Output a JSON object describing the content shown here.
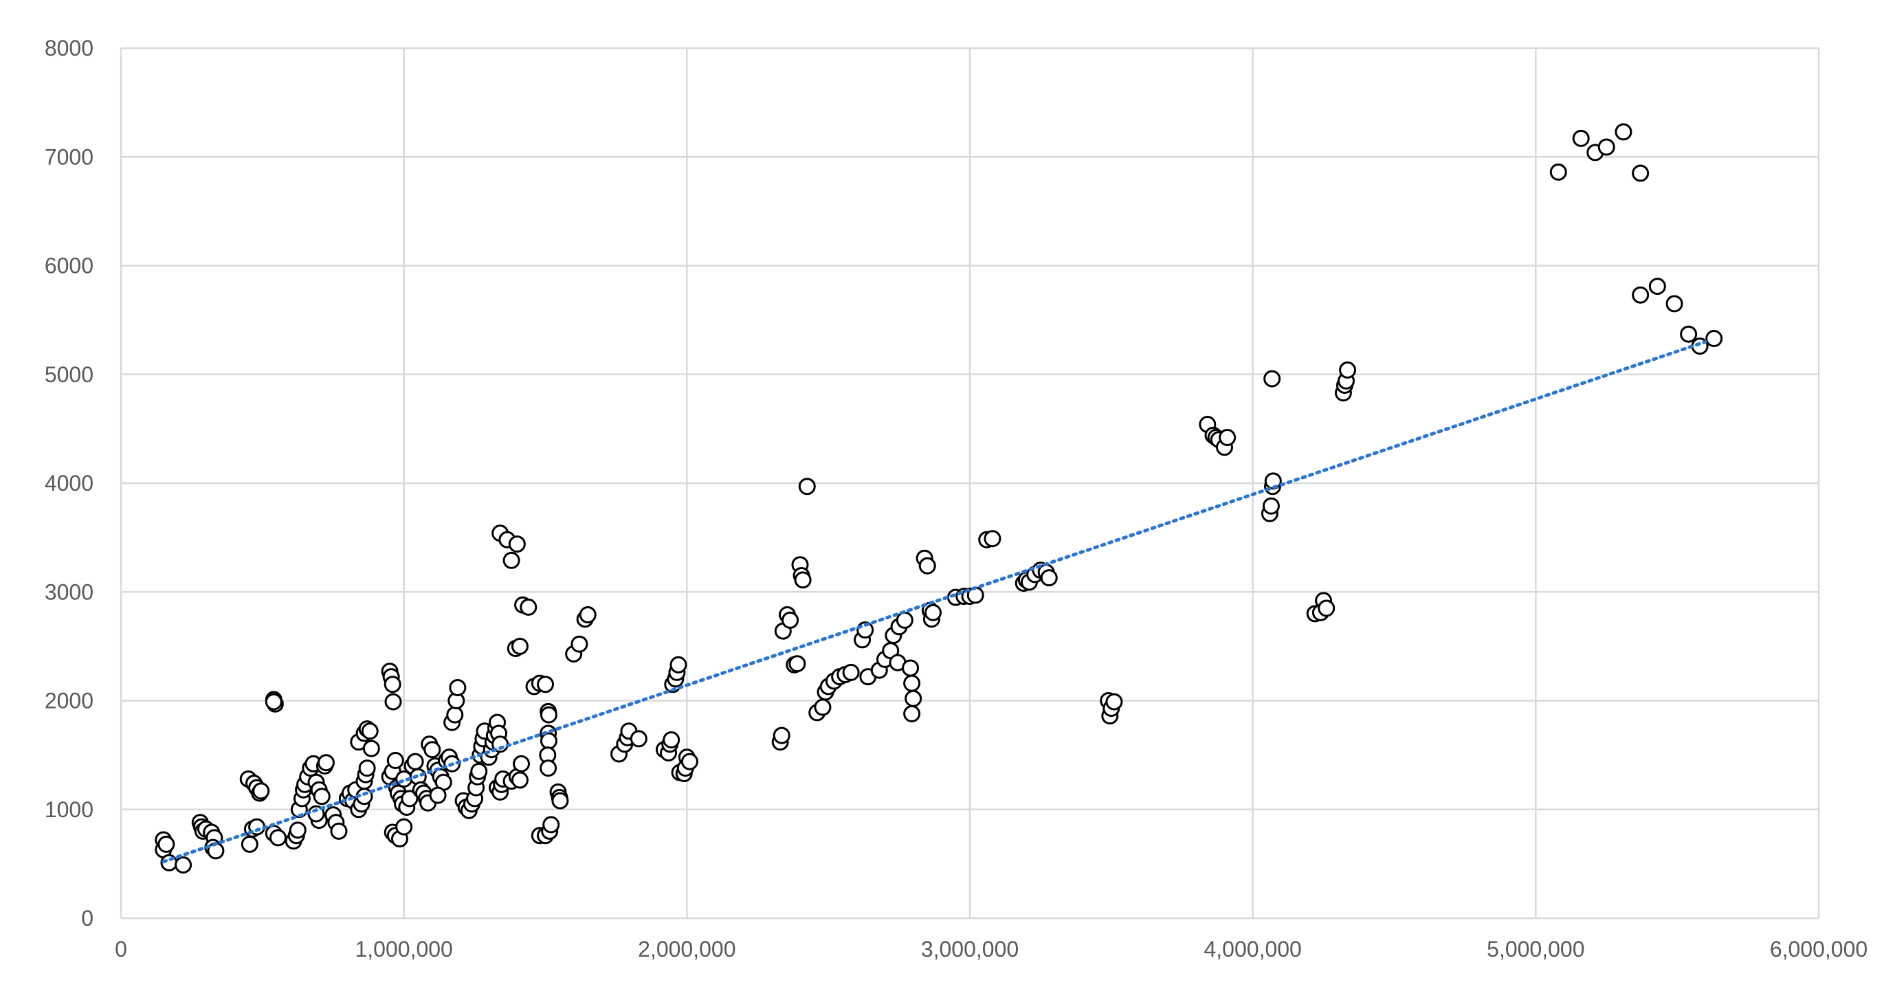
{
  "chart_data": {
    "type": "scatter",
    "title": "",
    "xlabel": "",
    "ylabel": "",
    "xlim": [
      0,
      6000000
    ],
    "ylim": [
      0,
      8000
    ],
    "x_ticks": [
      0,
      1000000,
      2000000,
      3000000,
      4000000,
      5000000,
      6000000
    ],
    "x_tick_labels": [
      "0",
      "1,000,000",
      "2,000,000",
      "3,000,000",
      "4,000,000",
      "5,000,000",
      "6,000,000"
    ],
    "y_ticks": [
      0,
      1000,
      2000,
      3000,
      4000,
      5000,
      6000,
      7000,
      8000
    ],
    "y_tick_labels": [
      "0",
      "1000",
      "2000",
      "3000",
      "4000",
      "5000",
      "6000",
      "7000",
      "8000"
    ],
    "grid": true,
    "legend": "none",
    "colors": {
      "marker_fill": "#ffffff",
      "marker_stroke": "#000000",
      "trendline": "#2e75d2",
      "gridline": "#d9d9d9",
      "tick_text": "#595959"
    },
    "trendline": {
      "type": "linear",
      "style": "dotted",
      "x": [
        150000,
        5600000
      ],
      "y": [
        520,
        5300
      ]
    },
    "series": [
      {
        "points": [
          [
            150000,
            720
          ],
          [
            150000,
            630
          ],
          [
            160000,
            680
          ],
          [
            170000,
            510
          ],
          [
            220000,
            490
          ],
          [
            280000,
            880
          ],
          [
            285000,
            840
          ],
          [
            290000,
            800
          ],
          [
            300000,
            820
          ],
          [
            320000,
            790
          ],
          [
            330000,
            740
          ],
          [
            325000,
            650
          ],
          [
            335000,
            620
          ],
          [
            450000,
            1280
          ],
          [
            470000,
            1240
          ],
          [
            480000,
            1200
          ],
          [
            490000,
            1150
          ],
          [
            495000,
            1170
          ],
          [
            455000,
            680
          ],
          [
            465000,
            820
          ],
          [
            480000,
            840
          ],
          [
            540000,
            2010
          ],
          [
            545000,
            1970
          ],
          [
            540000,
            1990
          ],
          [
            540000,
            780
          ],
          [
            555000,
            740
          ],
          [
            610000,
            710
          ],
          [
            620000,
            760
          ],
          [
            625000,
            810
          ],
          [
            630000,
            1000
          ],
          [
            640000,
            1100
          ],
          [
            645000,
            1180
          ],
          [
            650000,
            1230
          ],
          [
            660000,
            1300
          ],
          [
            670000,
            1380
          ],
          [
            680000,
            1420
          ],
          [
            690000,
            1250
          ],
          [
            700000,
            1180
          ],
          [
            710000,
            1120
          ],
          [
            720000,
            1400
          ],
          [
            725000,
            1430
          ],
          [
            700000,
            900
          ],
          [
            690000,
            960
          ],
          [
            750000,
            950
          ],
          [
            760000,
            880
          ],
          [
            770000,
            800
          ],
          [
            800000,
            1100
          ],
          [
            810000,
            1150
          ],
          [
            820000,
            1080
          ],
          [
            830000,
            1180
          ],
          [
            840000,
            1000
          ],
          [
            850000,
            1050
          ],
          [
            860000,
            1120
          ],
          [
            840000,
            1620
          ],
          [
            860000,
            1700
          ],
          [
            870000,
            1740
          ],
          [
            880000,
            1720
          ],
          [
            885000,
            1560
          ],
          [
            860000,
            1260
          ],
          [
            865000,
            1320
          ],
          [
            870000,
            1380
          ],
          [
            950000,
            2270
          ],
          [
            955000,
            2220
          ],
          [
            960000,
            2150
          ],
          [
            962000,
            1990
          ],
          [
            950000,
            1300
          ],
          [
            960000,
            1350
          ],
          [
            970000,
            1450
          ],
          [
            975000,
            1200
          ],
          [
            980000,
            1150
          ],
          [
            990000,
            1100
          ],
          [
            995000,
            1050
          ],
          [
            960000,
            790
          ],
          [
            970000,
            760
          ],
          [
            985000,
            730
          ],
          [
            1000000,
            840
          ],
          [
            1000000,
            1280
          ],
          [
            1010000,
            1020
          ],
          [
            1020000,
            1100
          ],
          [
            1030000,
            1400
          ],
          [
            1040000,
            1440
          ],
          [
            1050000,
            1300
          ],
          [
            1060000,
            1180
          ],
          [
            1070000,
            1150
          ],
          [
            1080000,
            1100
          ],
          [
            1085000,
            1060
          ],
          [
            1090000,
            1600
          ],
          [
            1100000,
            1550
          ],
          [
            1110000,
            1400
          ],
          [
            1120000,
            1360
          ],
          [
            1130000,
            1300
          ],
          [
            1140000,
            1250
          ],
          [
            1150000,
            1450
          ],
          [
            1160000,
            1480
          ],
          [
            1170000,
            1420
          ],
          [
            1120000,
            1130
          ],
          [
            1170000,
            1800
          ],
          [
            1180000,
            1870
          ],
          [
            1185000,
            2000
          ],
          [
            1190000,
            2120
          ],
          [
            1210000,
            1080
          ],
          [
            1220000,
            1020
          ],
          [
            1230000,
            990
          ],
          [
            1240000,
            1050
          ],
          [
            1250000,
            1100
          ],
          [
            1255000,
            1200
          ],
          [
            1260000,
            1300
          ],
          [
            1265000,
            1350
          ],
          [
            1270000,
            1500
          ],
          [
            1275000,
            1580
          ],
          [
            1280000,
            1650
          ],
          [
            1285000,
            1720
          ],
          [
            1300000,
            1480
          ],
          [
            1310000,
            1550
          ],
          [
            1315000,
            1620
          ],
          [
            1320000,
            1680
          ],
          [
            1325000,
            1750
          ],
          [
            1330000,
            1800
          ],
          [
            1335000,
            1700
          ],
          [
            1340000,
            1600
          ],
          [
            1330000,
            1200
          ],
          [
            1340000,
            1160
          ],
          [
            1345000,
            1230
          ],
          [
            1350000,
            1280
          ],
          [
            1340000,
            3540
          ],
          [
            1365000,
            3480
          ],
          [
            1380000,
            3290
          ],
          [
            1400000,
            3440
          ],
          [
            1395000,
            2480
          ],
          [
            1410000,
            2500
          ],
          [
            1420000,
            2880
          ],
          [
            1440000,
            2860
          ],
          [
            1380000,
            1260
          ],
          [
            1400000,
            1300
          ],
          [
            1410000,
            1270
          ],
          [
            1415000,
            1420
          ],
          [
            1460000,
            2130
          ],
          [
            1480000,
            2160
          ],
          [
            1500000,
            2150
          ],
          [
            1480000,
            760
          ],
          [
            1500000,
            760
          ],
          [
            1515000,
            800
          ],
          [
            1520000,
            860
          ],
          [
            1510000,
            1900
          ],
          [
            1512000,
            1870
          ],
          [
            1510000,
            1700
          ],
          [
            1512000,
            1630
          ],
          [
            1508000,
            1500
          ],
          [
            1510000,
            1380
          ],
          [
            1545000,
            1160
          ],
          [
            1550000,
            1110
          ],
          [
            1552000,
            1080
          ],
          [
            1600000,
            2430
          ],
          [
            1620000,
            2520
          ],
          [
            1640000,
            2750
          ],
          [
            1650000,
            2790
          ],
          [
            1760000,
            1510
          ],
          [
            1780000,
            1600
          ],
          [
            1790000,
            1660
          ],
          [
            1795000,
            1720
          ],
          [
            1830000,
            1650
          ],
          [
            1920000,
            1550
          ],
          [
            1935000,
            1520
          ],
          [
            1940000,
            1600
          ],
          [
            1945000,
            1640
          ],
          [
            1950000,
            2150
          ],
          [
            1960000,
            2200
          ],
          [
            1965000,
            2260
          ],
          [
            1970000,
            2330
          ],
          [
            1975000,
            1340
          ],
          [
            1990000,
            1330
          ],
          [
            1995000,
            1380
          ],
          [
            2000000,
            1480
          ],
          [
            2010000,
            1440
          ],
          [
            2330000,
            1620
          ],
          [
            2335000,
            1680
          ],
          [
            2340000,
            2640
          ],
          [
            2355000,
            2790
          ],
          [
            2365000,
            2740
          ],
          [
            2380000,
            2330
          ],
          [
            2390000,
            2340
          ],
          [
            2400000,
            3250
          ],
          [
            2405000,
            3150
          ],
          [
            2410000,
            3110
          ],
          [
            2425000,
            3970
          ],
          [
            2460000,
            1890
          ],
          [
            2480000,
            1940
          ],
          [
            2490000,
            2080
          ],
          [
            2500000,
            2130
          ],
          [
            2520000,
            2180
          ],
          [
            2540000,
            2220
          ],
          [
            2560000,
            2240
          ],
          [
            2580000,
            2260
          ],
          [
            2620000,
            2560
          ],
          [
            2630000,
            2650
          ],
          [
            2640000,
            2220
          ],
          [
            2680000,
            2280
          ],
          [
            2700000,
            2380
          ],
          [
            2720000,
            2460
          ],
          [
            2730000,
            2600
          ],
          [
            2750000,
            2680
          ],
          [
            2770000,
            2740
          ],
          [
            2745000,
            2350
          ],
          [
            2790000,
            2300
          ],
          [
            2795000,
            2160
          ],
          [
            2800000,
            2020
          ],
          [
            2795000,
            1880
          ],
          [
            2840000,
            3310
          ],
          [
            2850000,
            3240
          ],
          [
            2860000,
            2830
          ],
          [
            2865000,
            2750
          ],
          [
            2870000,
            2810
          ],
          [
            2950000,
            2950
          ],
          [
            2980000,
            2960
          ],
          [
            3000000,
            2960
          ],
          [
            3020000,
            2970
          ],
          [
            3060000,
            3480
          ],
          [
            3080000,
            3490
          ],
          [
            3190000,
            3080
          ],
          [
            3200000,
            3110
          ],
          [
            3210000,
            3090
          ],
          [
            3230000,
            3160
          ],
          [
            3250000,
            3200
          ],
          [
            3270000,
            3180
          ],
          [
            3280000,
            3130
          ],
          [
            3490000,
            2000
          ],
          [
            3495000,
            1860
          ],
          [
            3500000,
            1930
          ],
          [
            3510000,
            1990
          ],
          [
            3840000,
            4540
          ],
          [
            3860000,
            4440
          ],
          [
            3870000,
            4420
          ],
          [
            3880000,
            4400
          ],
          [
            3900000,
            4330
          ],
          [
            3910000,
            4420
          ],
          [
            4060000,
            3720
          ],
          [
            4065000,
            3790
          ],
          [
            4070000,
            3970
          ],
          [
            4072000,
            4020
          ],
          [
            4068000,
            4960
          ],
          [
            4220000,
            2800
          ],
          [
            4240000,
            2810
          ],
          [
            4250000,
            2920
          ],
          [
            4260000,
            2850
          ],
          [
            4320000,
            4830
          ],
          [
            4325000,
            4900
          ],
          [
            4330000,
            4940
          ],
          [
            4335000,
            5040
          ],
          [
            5080000,
            6860
          ],
          [
            5160000,
            7170
          ],
          [
            5210000,
            7040
          ],
          [
            5250000,
            7090
          ],
          [
            5310000,
            7230
          ],
          [
            5370000,
            6850
          ],
          [
            5370000,
            5730
          ],
          [
            5430000,
            5810
          ],
          [
            5490000,
            5650
          ],
          [
            5540000,
            5370
          ],
          [
            5580000,
            5260
          ],
          [
            5630000,
            5330
          ]
        ]
      }
    ]
  }
}
